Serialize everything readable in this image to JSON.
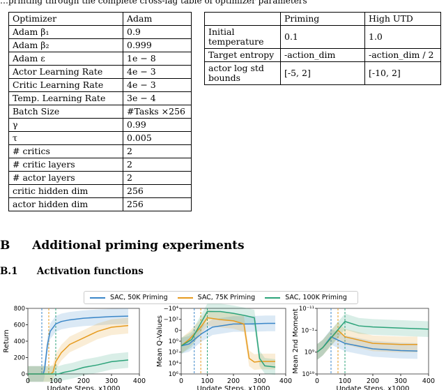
{
  "top_text": "…printing through the complete cross-lag table of optimizer parameters",
  "table_optimizer": {
    "rows": [
      [
        "Optimizer",
        "Adam"
      ],
      [
        "Adam β₁",
        "0.9"
      ],
      [
        "Adam β₂",
        "0.999"
      ],
      [
        "Adam ε",
        "1e − 8"
      ],
      [
        "Actor Learning Rate",
        "4e − 3"
      ],
      [
        "Critic Learning Rate",
        "4e − 3"
      ],
      [
        "Temp. Learning Rate",
        "3e − 4"
      ],
      [
        "Batch Size",
        "#Tasks ×256"
      ],
      [
        "γ",
        "0.99"
      ],
      [
        "τ",
        "0.005"
      ],
      [
        "# critics",
        "2"
      ],
      [
        "# critic layers",
        "2"
      ],
      [
        "# actor layers",
        "2"
      ],
      [
        "critic hidden dim",
        "256"
      ],
      [
        "actor hidden dim",
        "256"
      ]
    ]
  },
  "table_priming": {
    "header": [
      "",
      "Priming",
      "High UTD"
    ],
    "rows": [
      [
        "Initial temperature",
        "0.1",
        "1.0"
      ],
      [
        "Target entropy",
        "-action_dim",
        "-action_dim / 2"
      ],
      [
        "actor log std bounds",
        "[-5, 2]",
        "[-10, 2]"
      ]
    ]
  },
  "section": {
    "number": "B",
    "title": "Additional priming experiments"
  },
  "subsection": {
    "number": "B.1",
    "title": "Activation functions"
  },
  "colors": {
    "s50": "#3a86c8",
    "s75": "#e69a1e",
    "s100": "#2ca37a"
  },
  "chart_data": [
    {
      "type": "line",
      "xlabel": "Update Steps, x1000",
      "ylabel": "Return",
      "xlim": [
        0,
        400
      ],
      "ylim": [
        0,
        800
      ],
      "xticks": [
        "0",
        "100",
        "200",
        "300",
        "400"
      ],
      "yticks": [
        "0",
        "200",
        "400",
        "600",
        "800"
      ],
      "vlines": [
        50,
        75,
        100
      ],
      "series": [
        {
          "name": "SAC, 50K Priming",
          "x": [
            0,
            55,
            60,
            70,
            80,
            100,
            120,
            150,
            200,
            250,
            300,
            360
          ],
          "y": [
            0,
            0,
            60,
            350,
            520,
            610,
            640,
            660,
            680,
            690,
            700,
            705
          ]
        },
        {
          "name": "SAC, 75K Priming",
          "x": [
            0,
            80,
            90,
            100,
            120,
            150,
            200,
            250,
            300,
            360
          ],
          "y": [
            0,
            0,
            20,
            150,
            260,
            360,
            440,
            520,
            570,
            590
          ]
        },
        {
          "name": "SAC, 100K Priming",
          "x": [
            0,
            110,
            130,
            160,
            200,
            250,
            300,
            360
          ],
          "y": [
            0,
            0,
            20,
            40,
            80,
            110,
            150,
            170
          ]
        }
      ]
    },
    {
      "type": "line",
      "xlabel": "Update Steps, x1000",
      "ylabel": "Mean Q-Values",
      "xlim": [
        0,
        400
      ],
      "yticks": [
        "10⁶",
        "10⁴",
        "10²",
        "10⁰",
        "0",
        "−10²",
        "−10⁴"
      ],
      "xticks": [
        "0",
        "100",
        "200",
        "300",
        "400"
      ],
      "vlines": [
        50,
        75,
        100
      ],
      "series": [
        {
          "name": "SAC, 50K Priming",
          "x": [
            0,
            30,
            50,
            80,
            120,
            200,
            260,
            330,
            360
          ],
          "y": [
            0,
            0.3,
            1,
            2,
            3,
            3.5,
            3.5,
            3.6,
            3.6
          ]
        },
        {
          "name": "SAC, 75K Priming",
          "x": [
            0,
            30,
            75,
            100,
            150,
            200,
            240,
            260,
            280,
            300,
            360
          ],
          "y": [
            0,
            1,
            3,
            4.5,
            4.2,
            4,
            3.5,
            -2,
            -2.6,
            -2.5,
            -2.5
          ]
        },
        {
          "name": "SAC, 100K Priming",
          "x": [
            0,
            40,
            100,
            150,
            200,
            250,
            280,
            300,
            320,
            360
          ],
          "y": [
            0,
            1,
            5.5,
            5.5,
            5.2,
            4.8,
            4.5,
            -2,
            -3.2,
            -3.4
          ]
        }
      ]
    },
    {
      "type": "line",
      "xlabel": "Update Steps, x1000",
      "ylabel": "Mean 2nd Moment",
      "xlim": [
        0,
        400
      ],
      "yticks": [
        "10¹⁹",
        "10⁹",
        "10⁻¹",
        "10⁻¹¹"
      ],
      "xticks": [
        "0",
        "100",
        "200",
        "300",
        "400"
      ],
      "vlines": [
        50,
        75,
        100
      ],
      "series": [
        {
          "name": "SAC, 50K Priming",
          "x": [
            0,
            20,
            50,
            100,
            200,
            300,
            360
          ],
          "y": [
            -1,
            1,
            6,
            3,
            0.5,
            -0.3,
            -0.5
          ]
        },
        {
          "name": "SAC, 75K Priming",
          "x": [
            0,
            20,
            75,
            100,
            200,
            300,
            360
          ],
          "y": [
            -1,
            1,
            9,
            6,
            3,
            2.5,
            2.5
          ]
        },
        {
          "name": "SAC, 100K Priming",
          "x": [
            0,
            20,
            100,
            150,
            200,
            300,
            400
          ],
          "y": [
            -1,
            1,
            13,
            11,
            10.5,
            10,
            9.5
          ]
        }
      ]
    }
  ]
}
